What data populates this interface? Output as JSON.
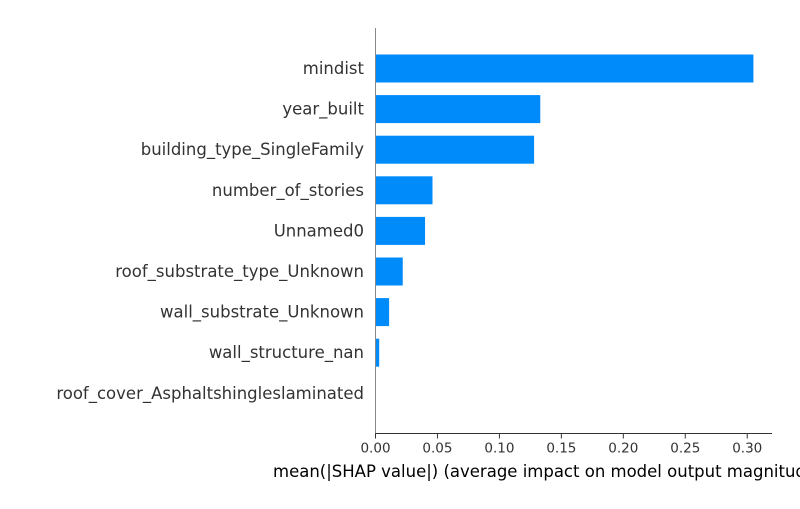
{
  "chart_data": {
    "type": "bar",
    "orientation": "horizontal",
    "title": "",
    "xlabel": "mean(|SHAP value|) (average impact on model output magnitude)",
    "ylabel": "",
    "categories": [
      "mindist",
      "year_built",
      "building_type_SingleFamily",
      "number_of_stories",
      "Unnamed0",
      "roof_substrate_type_Unknown",
      "wall_substrate_Unknown",
      "wall_structure_nan",
      "roof_cover_Asphaltshingleslaminated"
    ],
    "values": [
      0.305,
      0.133,
      0.128,
      0.046,
      0.04,
      0.022,
      0.011,
      0.003,
      0.0
    ],
    "xlim": [
      0,
      0.32
    ],
    "xticks": [
      0.0,
      0.05,
      0.1,
      0.15,
      0.2,
      0.25,
      0.3
    ],
    "xtick_labels": [
      "0.00",
      "0.05",
      "0.10",
      "0.15",
      "0.20",
      "0.25",
      "0.30"
    ],
    "bar_color": "#008bfb",
    "grid": false,
    "legend": "none"
  }
}
